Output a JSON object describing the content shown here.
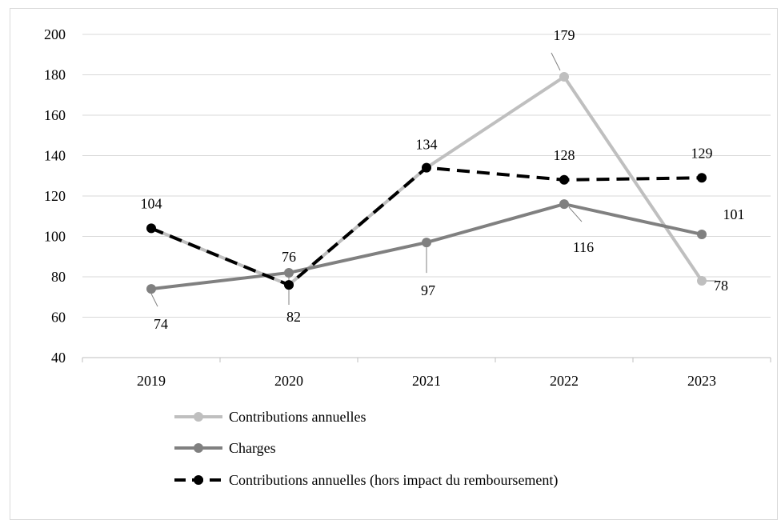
{
  "chart_data": {
    "type": "line",
    "title": "",
    "xlabel": "",
    "ylabel": "",
    "categories": [
      "2019",
      "2020",
      "2021",
      "2022",
      "2023"
    ],
    "ylim": [
      40,
      200
    ],
    "yticks": [
      40,
      60,
      80,
      100,
      120,
      140,
      160,
      180,
      200
    ],
    "grid": "horizontal",
    "legend_position": "bottom",
    "series": [
      {
        "name": "Contributions annuelles",
        "values": [
          104,
          76,
          134,
          179,
          78
        ],
        "color": "#bfbfbf",
        "style": "solid",
        "labels": [
          "",
          "",
          "",
          "179",
          "78"
        ]
      },
      {
        "name": "Charges",
        "values": [
          74,
          82,
          97,
          116,
          101
        ],
        "color": "#808080",
        "style": "solid",
        "labels": [
          "74",
          "82",
          "97",
          "116",
          "101"
        ]
      },
      {
        "name": "Contributions annuelles (hors impact du remboursement)",
        "values": [
          104,
          76,
          134,
          128,
          129
        ],
        "color": "#000000",
        "style": "dashed",
        "labels": [
          "104",
          "76",
          "134",
          "128",
          "129"
        ]
      }
    ]
  }
}
